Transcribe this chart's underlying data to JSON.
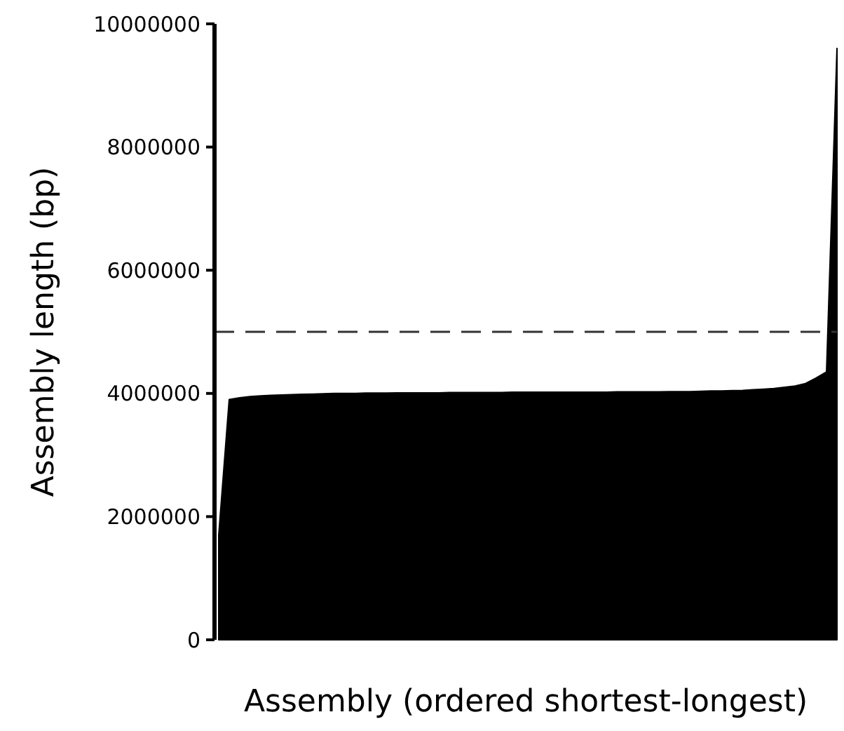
{
  "chart_data": {
    "type": "area",
    "xlabel": "Assembly (ordered shortest-longest)",
    "ylabel": "Assembly length (bp)",
    "categories": [
      null,
      null,
      null,
      null,
      null,
      null,
      null,
      null,
      null,
      null,
      null,
      null,
      null,
      null,
      null,
      null,
      null,
      null,
      null,
      null,
      null,
      null,
      null,
      null,
      null,
      null,
      null,
      null,
      null,
      null,
      null,
      null,
      null,
      null,
      null,
      null,
      null,
      null,
      null,
      null,
      null,
      null,
      null,
      null,
      null,
      null,
      null,
      null,
      null,
      null,
      null,
      null,
      null,
      null,
      null,
      null,
      null,
      null,
      null,
      null
    ],
    "series": [
      {
        "color": "#000000",
        "values": [
          1700000,
          3900000,
          3930000,
          3950000,
          3960000,
          3970000,
          3975000,
          3980000,
          3985000,
          3990000,
          3995000,
          4000000,
          4000000,
          4000000,
          4005000,
          4005000,
          4005000,
          4010000,
          4010000,
          4010000,
          4010000,
          4010000,
          4015000,
          4015000,
          4015000,
          4015000,
          4015000,
          4015000,
          4020000,
          4020000,
          4020000,
          4020000,
          4020000,
          4020000,
          4020000,
          4020000,
          4020000,
          4020000,
          4025000,
          4025000,
          4025000,
          4025000,
          4025000,
          4030000,
          4030000,
          4030000,
          4035000,
          4040000,
          4040000,
          4045000,
          4050000,
          4060000,
          4070000,
          4080000,
          4100000,
          4120000,
          4160000,
          4250000,
          4350000,
          9600000
        ]
      }
    ],
    "ylim": [
      0,
      10000000
    ],
    "yticks": [
      0,
      2000000,
      4000000,
      6000000,
      8000000,
      10000000
    ],
    "ref_lines": [
      {
        "axis": "y",
        "value": 5000000,
        "color": "#333333",
        "line_style": "dashed"
      }
    ]
  }
}
